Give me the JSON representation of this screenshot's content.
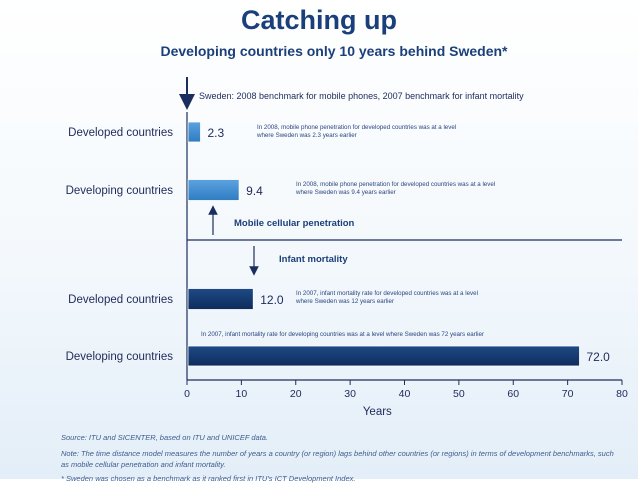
{
  "title": "Catching up",
  "subtitle": "Developing countries only 10 years behind Sweden*",
  "chart_data": {
    "type": "bar",
    "orientation": "horizontal",
    "xlabel": "Years",
    "xlim": [
      0,
      80
    ],
    "xticks": [
      0,
      10,
      20,
      30,
      40,
      50,
      60,
      70,
      80
    ],
    "benchmark_label": "Sweden: 2008 benchmark for mobile phones, 2007 benchmark for infant mortality",
    "groups": [
      {
        "name": "Mobile cellular penetration",
        "bars": [
          {
            "category": "Developed countries",
            "value": 2.3,
            "value_label": "2.3",
            "annotation": [
              "In 2008, mobile phone penetration for developed countries was at a level",
              "where Sweden was 2.3 years earlier"
            ]
          },
          {
            "category": "Developing countries",
            "value": 9.4,
            "value_label": "9.4",
            "annotation": [
              "In 2008, mobile phone penetration for developed countries was at a level",
              "where Sweden was 9.4 years earlier"
            ]
          }
        ]
      },
      {
        "name": "Infant mortality",
        "bars": [
          {
            "category": "Developed countries",
            "value": 12.0,
            "value_label": "12.0",
            "annotation": [
              "In 2007, infant mortality rate for developed countries was at a level",
              "where Sweden was 12 years earlier"
            ]
          },
          {
            "category": "Developing countries",
            "value": 72.0,
            "value_label": "72.0",
            "annotation": [
              "In 2007, infant mortality rate for developing countries was at a level where Sweden was 72 years earlier"
            ]
          }
        ]
      }
    ],
    "colors": {
      "mobile": "#2f7cc1",
      "mortality": "#0e2c5c",
      "axis": "#1b2f5e",
      "text": "#1e2a5a"
    }
  },
  "source": "Source: ITU and SICENTER, based on ITU and UNICEF data.",
  "note": "Note: The time distance model measures the number of years a country (or region) lags behind other countries (or regions) in terms of development benchmarks, such as mobile cellular penetration and infant mortality.",
  "footnote": "* Sweden was chosen as a benchmark as it ranked first in ITU's ICT Development Index."
}
